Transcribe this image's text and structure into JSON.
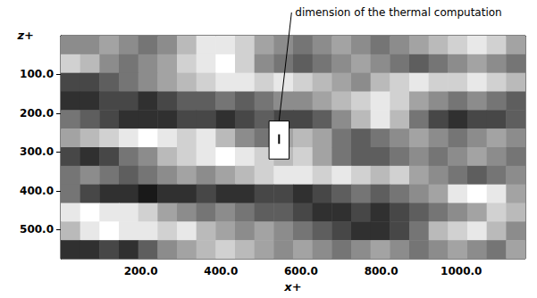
{
  "chart_data": {
    "type": "heatmap",
    "x_label": "x+",
    "y_label": "z+",
    "xlim": [
      0,
      1160
    ],
    "ylim": [
      575,
      0
    ],
    "xticks": [
      {
        "value": 200,
        "label": "200.0"
      },
      {
        "value": 400,
        "label": "400.0"
      },
      {
        "value": 600,
        "label": "600.0"
      },
      {
        "value": 800,
        "label": "800.0"
      },
      {
        "value": 1000,
        "label": "1000.0"
      }
    ],
    "yticks": [
      {
        "value": 100,
        "label": "100.0"
      },
      {
        "value": 200,
        "label": "200.0"
      },
      {
        "value": 300,
        "label": "300.0"
      },
      {
        "value": 400,
        "label": "400.0"
      },
      {
        "value": 500,
        "label": "500.0"
      }
    ],
    "grid": false,
    "color_range": [
      0,
      1
    ],
    "cells": [
      [
        0.5,
        0.5,
        0.6,
        0.5,
        0.4,
        0.5,
        0.7,
        0.9,
        0.9,
        0.8,
        0.6,
        0.5,
        0.4,
        0.5,
        0.6,
        0.5,
        0.4,
        0.5,
        0.6,
        0.7,
        0.8,
        0.9,
        0.8,
        0.6
      ],
      [
        0.8,
        0.7,
        0.5,
        0.4,
        0.5,
        0.6,
        0.8,
        0.9,
        1.0,
        0.8,
        0.5,
        0.4,
        0.3,
        0.4,
        0.5,
        0.6,
        0.5,
        0.4,
        0.3,
        0.4,
        0.5,
        0.6,
        0.5,
        0.4
      ],
      [
        0.2,
        0.2,
        0.3,
        0.4,
        0.5,
        0.6,
        0.7,
        0.8,
        0.9,
        0.9,
        0.8,
        0.9,
        0.8,
        0.7,
        0.6,
        0.5,
        0.7,
        0.8,
        0.9,
        0.8,
        0.8,
        0.9,
        0.8,
        0.7
      ],
      [
        0.1,
        0.1,
        0.2,
        0.2,
        0.1,
        0.2,
        0.3,
        0.3,
        0.4,
        0.3,
        0.4,
        0.5,
        0.5,
        0.6,
        0.7,
        0.8,
        0.9,
        0.8,
        0.6,
        0.5,
        0.4,
        0.5,
        0.4,
        0.3
      ],
      [
        0.4,
        0.3,
        0.2,
        0.1,
        0.1,
        0.1,
        0.2,
        0.2,
        0.1,
        0.2,
        0.3,
        0.2,
        0.2,
        0.3,
        0.5,
        0.7,
        0.9,
        0.7,
        0.4,
        0.2,
        0.1,
        0.2,
        0.2,
        0.3
      ],
      [
        0.6,
        0.7,
        0.8,
        0.9,
        1.0,
        0.9,
        0.8,
        0.9,
        0.7,
        0.5,
        0.4,
        0.6,
        0.7,
        0.6,
        0.4,
        0.3,
        0.4,
        0.5,
        0.6,
        0.5,
        0.4,
        0.5,
        0.6,
        0.5
      ],
      [
        0.2,
        0.1,
        0.2,
        0.4,
        0.5,
        0.7,
        0.8,
        0.9,
        1.0,
        0.9,
        0.8,
        0.7,
        0.8,
        0.6,
        0.4,
        0.3,
        0.3,
        0.4,
        0.5,
        0.4,
        0.5,
        0.6,
        0.5,
        0.4
      ],
      [
        0.4,
        0.5,
        0.4,
        0.3,
        0.4,
        0.5,
        0.6,
        0.5,
        0.6,
        0.7,
        0.8,
        0.9,
        0.9,
        0.8,
        0.9,
        0.8,
        0.7,
        0.8,
        0.6,
        0.5,
        0.4,
        0.3,
        0.4,
        0.5
      ],
      [
        0.4,
        0.2,
        0.1,
        0.1,
        0.0,
        0.1,
        0.1,
        0.2,
        0.1,
        0.1,
        0.2,
        0.2,
        0.1,
        0.2,
        0.3,
        0.4,
        0.3,
        0.4,
        0.5,
        0.6,
        0.9,
        1.0,
        0.9,
        0.6
      ],
      [
        0.9,
        1.0,
        0.9,
        0.9,
        0.8,
        0.6,
        0.5,
        0.4,
        0.5,
        0.4,
        0.3,
        0.3,
        0.2,
        0.1,
        0.1,
        0.2,
        0.1,
        0.2,
        0.3,
        0.4,
        0.5,
        0.6,
        0.8,
        0.7
      ],
      [
        0.7,
        0.9,
        1.0,
        0.9,
        0.9,
        0.8,
        0.9,
        0.7,
        0.6,
        0.5,
        0.6,
        0.5,
        0.4,
        0.3,
        0.2,
        0.1,
        0.1,
        0.2,
        0.4,
        0.7,
        0.8,
        0.9,
        0.7,
        0.5
      ],
      [
        0.1,
        0.1,
        0.2,
        0.1,
        0.3,
        0.5,
        0.6,
        0.7,
        0.8,
        0.7,
        0.6,
        0.5,
        0.6,
        0.5,
        0.4,
        0.5,
        0.6,
        0.5,
        0.4,
        0.5,
        0.6,
        0.5,
        0.4,
        0.6
      ]
    ],
    "annotation": {
      "text": "dimension of the thermal computation",
      "x": [
        520,
        570
      ],
      "y": [
        220,
        318
      ]
    }
  }
}
